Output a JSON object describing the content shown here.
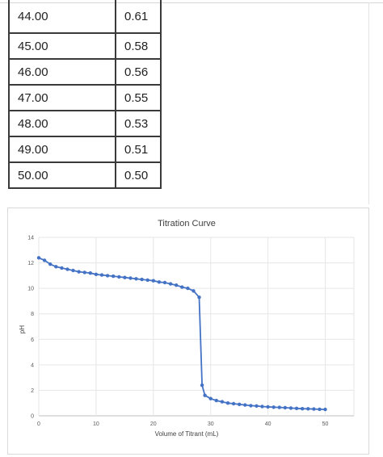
{
  "table": {
    "rows": [
      {
        "volume": "44.00",
        "ph": "0.61"
      },
      {
        "volume": "45.00",
        "ph": "0.58"
      },
      {
        "volume": "46.00",
        "ph": "0.56"
      },
      {
        "volume": "47.00",
        "ph": "0.55"
      },
      {
        "volume": "48.00",
        "ph": "0.53"
      },
      {
        "volume": "49.00",
        "ph": "0.51"
      },
      {
        "volume": "50.00",
        "ph": "0.50"
      }
    ]
  },
  "chart_data": {
    "type": "scatter",
    "title": "Titration Curve",
    "xlabel": "Volume of Titrant (mL)",
    "ylabel": "pH",
    "xlim": [
      0,
      55
    ],
    "ylim": [
      0,
      14
    ],
    "xticks": [
      0,
      10,
      20,
      30,
      40,
      50
    ],
    "yticks": [
      0,
      2,
      4,
      6,
      8,
      10,
      12,
      14
    ],
    "grid": true,
    "legend": "none",
    "color": "#4472c4",
    "series": [
      {
        "x": [
          0,
          1,
          2,
          3,
          4,
          5,
          6,
          7,
          8,
          9,
          10,
          11,
          12,
          13,
          14,
          15,
          16,
          17,
          18,
          19,
          20,
          21,
          22,
          23,
          24,
          25,
          26,
          27,
          28,
          28.5,
          29,
          30,
          31,
          32,
          33,
          34,
          35,
          36,
          37,
          38,
          39,
          40,
          41,
          42,
          43,
          44,
          45,
          46,
          47,
          48,
          49,
          50
        ],
        "y": [
          12.4,
          12.2,
          11.9,
          11.7,
          11.6,
          11.5,
          11.4,
          11.3,
          11.25,
          11.2,
          11.1,
          11.05,
          11.0,
          10.95,
          10.9,
          10.85,
          10.8,
          10.75,
          10.7,
          10.65,
          10.6,
          10.5,
          10.45,
          10.35,
          10.25,
          10.1,
          10.0,
          9.8,
          9.3,
          2.4,
          1.6,
          1.35,
          1.2,
          1.1,
          1.0,
          0.95,
          0.9,
          0.85,
          0.8,
          0.77,
          0.73,
          0.7,
          0.68,
          0.66,
          0.64,
          0.61,
          0.58,
          0.56,
          0.55,
          0.53,
          0.51,
          0.5
        ]
      }
    ]
  }
}
